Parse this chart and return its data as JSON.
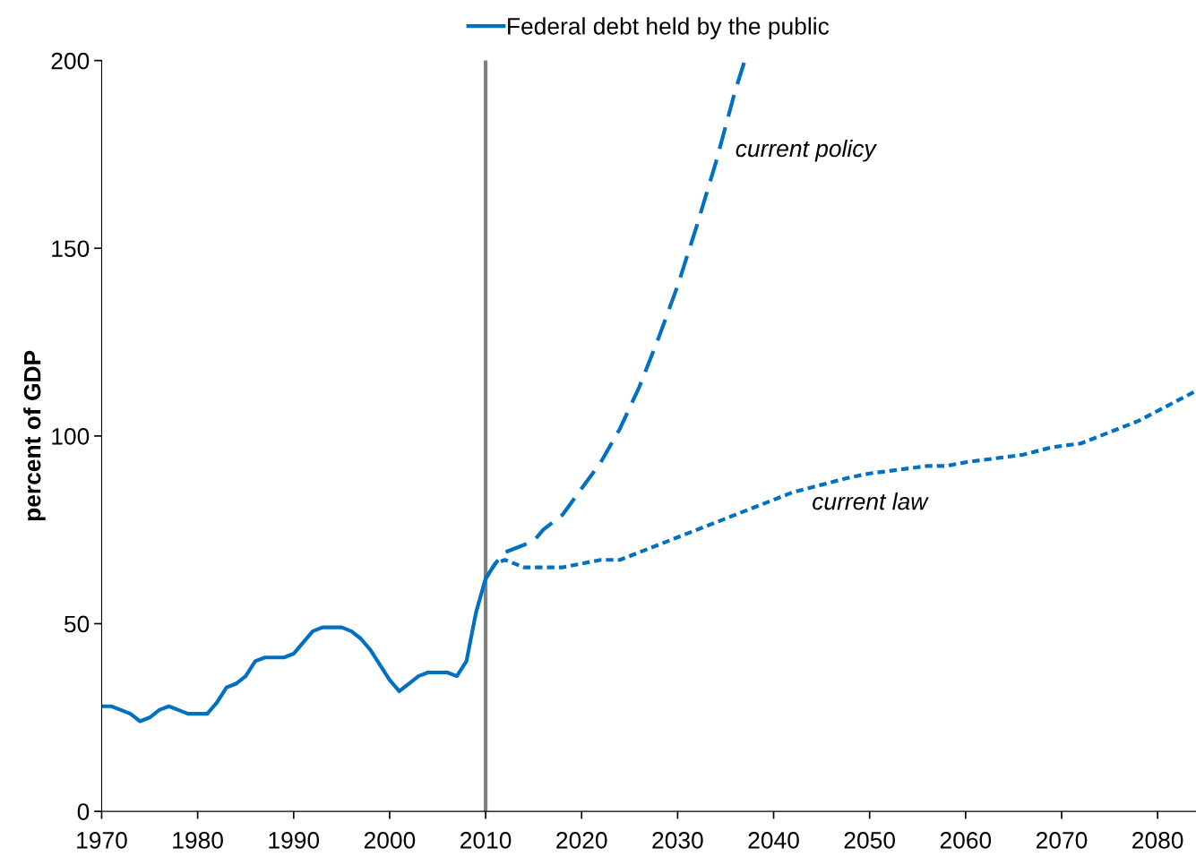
{
  "chart_data": {
    "type": "line",
    "x": [
      1970,
      1971,
      1972,
      1973,
      1974,
      1975,
      1976,
      1977,
      1978,
      1979,
      1980,
      1981,
      1982,
      1983,
      1984,
      1985,
      1986,
      1987,
      1988,
      1989,
      1990,
      1991,
      1992,
      1993,
      1994,
      1995,
      1996,
      1997,
      1998,
      1999,
      2000,
      2001,
      2002,
      2003,
      2004,
      2005,
      2006,
      2007,
      2008,
      2009,
      2010
    ],
    "series": [
      {
        "name": "Federal debt held by the public",
        "color": "#0070c0",
        "line_style": "solid",
        "values": [
          28,
          28,
          27,
          26,
          24,
          25,
          27,
          28,
          27,
          26,
          26,
          26,
          29,
          33,
          34,
          36,
          40,
          41,
          41,
          41,
          42,
          45,
          48,
          49,
          49,
          49,
          48,
          46,
          43,
          39,
          35,
          32,
          34,
          36,
          37,
          37,
          37,
          36,
          40,
          53,
          62
        ]
      },
      {
        "color": "#0070c0",
        "line_style": "dashed",
        "x": [
          2010,
          2011,
          2012,
          2014,
          2015,
          2016,
          2018,
          2020,
          2022,
          2024,
          2026,
          2028,
          2030,
          2032,
          2034,
          2036,
          2037
        ],
        "values": [
          62,
          66,
          69,
          71,
          72,
          75,
          79,
          86,
          93,
          102,
          113,
          126,
          140,
          156,
          173,
          192,
          200
        ]
      },
      {
        "color": "#0070c0",
        "line_style": "dotted",
        "x": [
          2010,
          2011,
          2012,
          2013,
          2014,
          2016,
          2018,
          2020,
          2022,
          2024,
          2026,
          2028,
          2030,
          2033,
          2036,
          2039,
          2042,
          2045,
          2048,
          2050,
          2053,
          2056,
          2058,
          2060,
          2063,
          2066,
          2069,
          2072,
          2075,
          2078,
          2081,
          2084
        ],
        "values": [
          62,
          66,
          67,
          66,
          65,
          65,
          65,
          66,
          67,
          67,
          69,
          71,
          73,
          76,
          79,
          82,
          85,
          87,
          89,
          90,
          91,
          92,
          92,
          93,
          94,
          95,
          97,
          98,
          101,
          104,
          108,
          112
        ]
      }
    ],
    "annotations": [
      "current policy",
      "current law"
    ],
    "ref_lines": [
      {
        "axis": "x",
        "value": 2010,
        "color": "#808080",
        "line_style": "solid"
      }
    ],
    "ylabel": "percent of GDP",
    "xlim": [
      1970,
      2084
    ],
    "xticks": [
      1970,
      1980,
      1990,
      2000,
      2010,
      2020,
      2030,
      2040,
      2050,
      2060,
      2070,
      2080
    ],
    "ylim": [
      0,
      200
    ],
    "yticks": [
      0,
      50,
      100,
      150,
      200
    ],
    "grid": false,
    "legend": "top",
    "marker": "none"
  }
}
